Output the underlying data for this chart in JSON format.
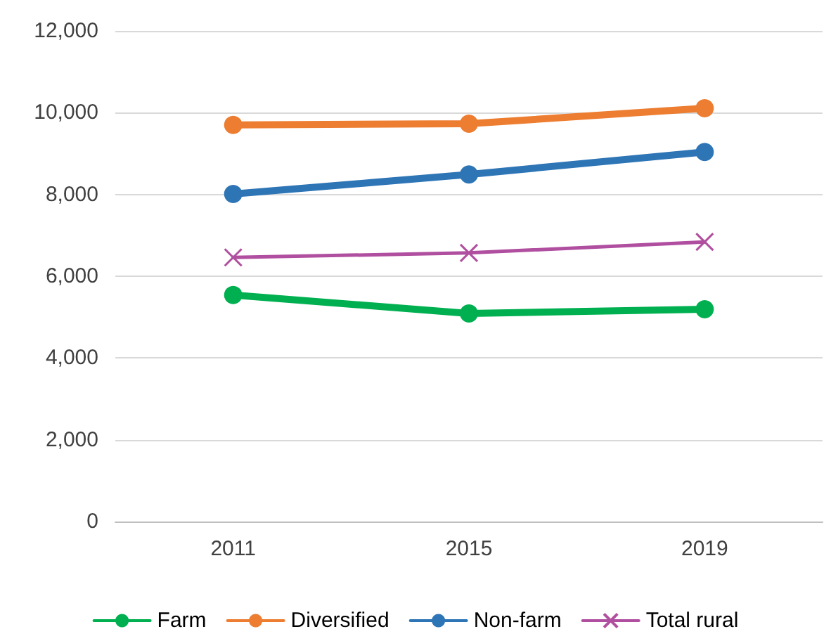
{
  "chart_data": {
    "type": "line",
    "categories": [
      "2011",
      "2015",
      "2019"
    ],
    "series": [
      {
        "name": "Farm",
        "color": "#00b050",
        "marker": "circle",
        "values": [
          5540,
          5090,
          5190
        ]
      },
      {
        "name": "Diversified",
        "color": "#ed7d31",
        "marker": "circle",
        "values": [
          9700,
          9730,
          10110
        ]
      },
      {
        "name": "Non-farm",
        "color": "#2e75b6",
        "marker": "circle",
        "values": [
          8010,
          8490,
          9040
        ]
      },
      {
        "name": "Total rural",
        "color": "#b04f9f",
        "marker": "cross",
        "values": [
          6460,
          6570,
          6840
        ]
      }
    ],
    "ylim": [
      0,
      12000
    ],
    "yticks": [
      0,
      {
        "value": 2000,
        "label": "2,000"
      },
      {
        "value": 4000,
        "label": "4,000"
      },
      {
        "value": 6000,
        "label": "6,000"
      },
      {
        "value": 8000,
        "label": "8,000"
      },
      {
        "value": 10000,
        "label": "10,000"
      },
      {
        "value": 12000,
        "label": "12,000"
      }
    ],
    "grid": "y",
    "legend": "bottom"
  }
}
